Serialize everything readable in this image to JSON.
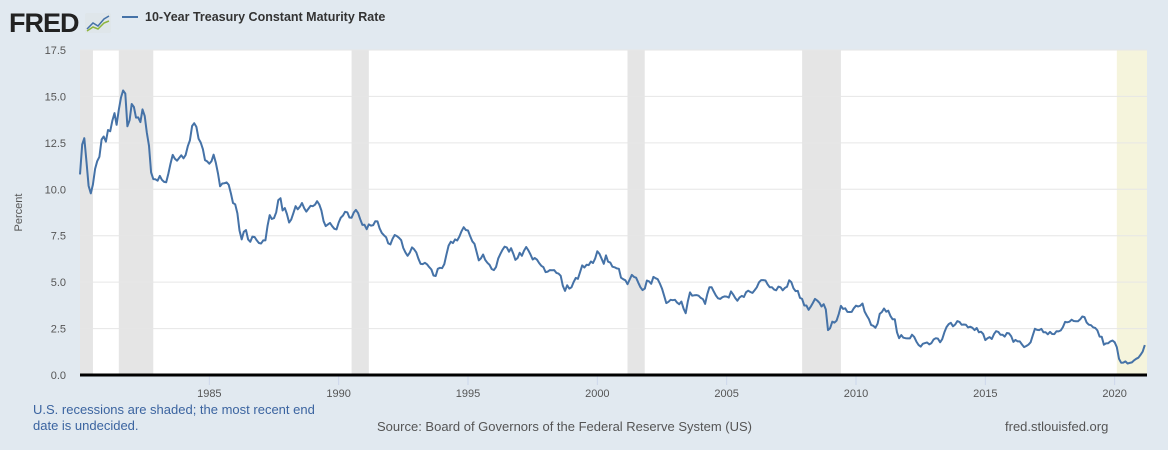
{
  "header": {
    "logo_text": "FRED",
    "logo_icon": "line-chart-icon"
  },
  "footer": {
    "recession_note": "U.S. recessions are shaded; the most recent end date is undecided.",
    "source": "Source: Board of Governors of the Federal Reserve System (US)",
    "site": "fred.stlouisfed.org"
  },
  "colors": {
    "background": "#e1e9f0",
    "line": "#4572a7",
    "recession": "#e5e5e5",
    "undecided_recession": "#f5f4dc",
    "note_text": "#3b64a0"
  },
  "chart_data": {
    "type": "line",
    "title": "",
    "xlabel": "",
    "ylabel": "Percent",
    "xlim": [
      "1980-01",
      "2021-03"
    ],
    "ylim": [
      0,
      17.5
    ],
    "yticks": [
      "0.0",
      "2.5",
      "5.0",
      "7.5",
      "10.0",
      "12.5",
      "15.0",
      "17.5"
    ],
    "xticks": [
      "1985",
      "1990",
      "1995",
      "2000",
      "2005",
      "2010",
      "2015",
      "2020"
    ],
    "grid": true,
    "legend_position": "top-left",
    "series": [
      {
        "name": "10-Year Treasury Constant Maturity Rate",
        "frequency": "monthly",
        "values_by_year": {
          "1980": [
            10.8,
            12.41,
            12.75,
            11.47,
            10.18,
            9.78,
            10.25,
            11.1,
            11.51,
            11.75,
            12.68,
            12.84
          ],
          "1981": [
            12.57,
            13.19,
            13.12,
            13.68,
            14.1,
            13.47,
            14.28,
            14.94,
            15.32,
            15.15,
            13.39,
            13.72
          ],
          "1982": [
            14.59,
            14.43,
            13.86,
            13.87,
            13.62,
            14.3,
            13.95,
            13.06,
            12.34,
            10.91,
            10.55,
            10.54
          ],
          "1983": [
            10.46,
            10.72,
            10.51,
            10.4,
            10.38,
            10.85,
            11.38,
            11.85,
            11.65,
            11.54,
            11.69,
            11.83
          ],
          "1984": [
            11.67,
            11.84,
            12.32,
            12.63,
            13.41,
            13.56,
            13.36,
            12.72,
            12.52,
            12.16,
            11.57,
            11.5
          ],
          "1985": [
            11.38,
            11.51,
            11.86,
            11.43,
            10.85,
            10.16,
            10.31,
            10.33,
            10.37,
            10.24,
            9.78,
            9.26
          ],
          "1986": [
            9.19,
            8.7,
            7.78,
            7.3,
            7.71,
            7.8,
            7.3,
            7.17,
            7.45,
            7.43,
            7.25,
            7.11
          ],
          "1987": [
            7.08,
            7.25,
            7.25,
            8.02,
            8.61,
            8.4,
            8.45,
            8.76,
            9.42,
            9.52,
            8.86,
            8.99
          ],
          "1988": [
            8.67,
            8.21,
            8.37,
            8.72,
            9.09,
            8.92,
            9.06,
            9.26,
            8.98,
            8.8,
            8.96,
            9.11
          ],
          "1989": [
            9.09,
            9.17,
            9.36,
            9.18,
            8.86,
            8.28,
            8.02,
            8.11,
            8.19,
            8.01,
            7.87,
            7.84
          ],
          "1990": [
            8.21,
            8.47,
            8.59,
            8.79,
            8.76,
            8.48,
            8.47,
            8.75,
            8.89,
            8.72,
            8.39,
            8.08
          ],
          "1991": [
            8.09,
            7.85,
            8.11,
            8.04,
            8.07,
            8.28,
            8.27,
            7.9,
            7.65,
            7.53,
            7.42,
            7.09
          ],
          "1992": [
            7.03,
            7.34,
            7.54,
            7.48,
            7.39,
            7.26,
            6.84,
            6.59,
            6.42,
            6.59,
            6.87,
            6.77
          ],
          "1993": [
            6.6,
            6.26,
            5.98,
            5.97,
            6.04,
            5.96,
            5.81,
            5.68,
            5.36,
            5.33,
            5.72,
            5.77
          ],
          "1994": [
            5.75,
            5.97,
            6.48,
            6.97,
            7.18,
            7.1,
            7.3,
            7.24,
            7.46,
            7.74,
            7.96,
            7.81
          ],
          "1995": [
            7.78,
            7.47,
            7.2,
            7.06,
            6.63,
            6.17,
            6.28,
            6.49,
            6.2,
            6.04,
            5.93,
            5.71
          ],
          "1996": [
            5.65,
            5.81,
            6.27,
            6.51,
            6.74,
            6.91,
            6.87,
            6.64,
            6.83,
            6.53,
            6.2,
            6.3
          ],
          "1997": [
            6.58,
            6.42,
            6.69,
            6.89,
            6.71,
            6.49,
            6.22,
            6.3,
            6.21,
            6.03,
            5.88,
            5.81
          ],
          "1998": [
            5.54,
            5.57,
            5.65,
            5.64,
            5.65,
            5.5,
            5.46,
            5.34,
            4.81,
            4.53,
            4.83,
            4.65
          ],
          "1999": [
            4.72,
            5.0,
            5.23,
            5.18,
            5.54,
            5.9,
            5.79,
            5.94,
            5.92,
            6.11,
            6.03,
            6.28
          ],
          "2000": [
            6.66,
            6.52,
            6.26,
            5.99,
            6.44,
            6.1,
            6.05,
            5.83,
            5.8,
            5.74,
            5.72,
            5.24
          ],
          "2001": [
            5.16,
            5.1,
            4.89,
            5.14,
            5.39,
            5.28,
            5.24,
            4.97,
            4.73,
            4.57,
            4.65,
            5.09
          ],
          "2002": [
            5.04,
            4.91,
            5.28,
            5.21,
            5.16,
            4.93,
            4.65,
            4.26,
            3.87,
            3.94,
            4.05,
            4.03
          ],
          "2003": [
            4.05,
            3.9,
            3.81,
            3.96,
            3.57,
            3.33,
            3.98,
            4.45,
            4.27,
            4.29,
            4.3,
            4.27
          ],
          "2004": [
            4.15,
            4.08,
            3.83,
            4.35,
            4.72,
            4.73,
            4.5,
            4.28,
            4.13,
            4.1,
            4.19,
            4.23
          ],
          "2005": [
            4.22,
            4.17,
            4.5,
            4.34,
            4.14,
            4.0,
            4.18,
            4.26,
            4.2,
            4.46,
            4.54,
            4.47
          ],
          "2006": [
            4.42,
            4.57,
            4.72,
            4.99,
            5.11,
            5.11,
            5.09,
            4.88,
            4.72,
            4.73,
            4.6,
            4.56
          ],
          "2007": [
            4.76,
            4.72,
            4.56,
            4.69,
            4.75,
            5.1,
            5.0,
            4.67,
            4.52,
            4.53,
            4.15,
            4.1
          ],
          "2008": [
            3.74,
            3.74,
            3.51,
            3.68,
            3.88,
            4.1,
            4.01,
            3.89,
            3.69,
            3.81,
            3.53,
            2.42
          ],
          "2009": [
            2.52,
            2.87,
            2.82,
            2.93,
            3.29,
            3.72,
            3.56,
            3.59,
            3.4,
            3.39,
            3.4,
            3.59
          ],
          "2010": [
            3.73,
            3.69,
            3.73,
            3.85,
            3.42,
            3.2,
            3.01,
            2.7,
            2.65,
            2.54,
            2.76,
            3.29
          ],
          "2011": [
            3.39,
            3.58,
            3.41,
            3.46,
            3.17,
            3.0,
            3.0,
            2.3,
            1.98,
            2.15,
            2.01,
            1.98
          ],
          "2012": [
            1.97,
            1.97,
            2.17,
            2.05,
            1.8,
            1.62,
            1.53,
            1.68,
            1.72,
            1.75,
            1.65,
            1.72
          ],
          "2013": [
            1.91,
            1.98,
            1.96,
            1.76,
            1.93,
            2.3,
            2.58,
            2.74,
            2.81,
            2.62,
            2.72,
            2.9
          ],
          "2014": [
            2.86,
            2.71,
            2.72,
            2.71,
            2.56,
            2.6,
            2.54,
            2.42,
            2.53,
            2.3,
            2.33,
            2.21
          ],
          "2015": [
            1.88,
            1.98,
            2.04,
            1.94,
            2.2,
            2.36,
            2.32,
            2.17,
            2.17,
            2.07,
            2.26,
            2.24
          ],
          "2016": [
            2.09,
            1.78,
            1.89,
            1.81,
            1.81,
            1.64,
            1.5,
            1.56,
            1.63,
            1.76,
            2.14,
            2.49
          ],
          "2017": [
            2.43,
            2.42,
            2.48,
            2.3,
            2.3,
            2.19,
            2.32,
            2.21,
            2.2,
            2.36,
            2.35,
            2.4
          ],
          "2018": [
            2.58,
            2.86,
            2.84,
            2.87,
            2.98,
            2.91,
            2.89,
            2.89,
            3.0,
            3.15,
            3.12,
            2.83
          ],
          "2019": [
            2.71,
            2.68,
            2.57,
            2.53,
            2.4,
            2.07,
            2.06,
            1.63,
            1.7,
            1.71,
            1.81,
            1.86
          ],
          "2020": [
            1.76,
            1.5,
            0.87,
            0.66,
            0.67,
            0.73,
            0.62,
            0.65,
            0.68,
            0.79,
            0.87,
            0.93
          ],
          "2021": [
            1.08,
            1.26,
            1.61
          ]
        }
      }
    ],
    "recessions": [
      {
        "start": "1980-01",
        "end": "1980-07"
      },
      {
        "start": "1981-07",
        "end": "1982-11"
      },
      {
        "start": "1990-07",
        "end": "1991-03"
      },
      {
        "start": "2001-03",
        "end": "2001-11"
      },
      {
        "start": "2007-12",
        "end": "2009-06"
      },
      {
        "start": "2020-02",
        "end": null,
        "end_undecided": true
      }
    ]
  }
}
